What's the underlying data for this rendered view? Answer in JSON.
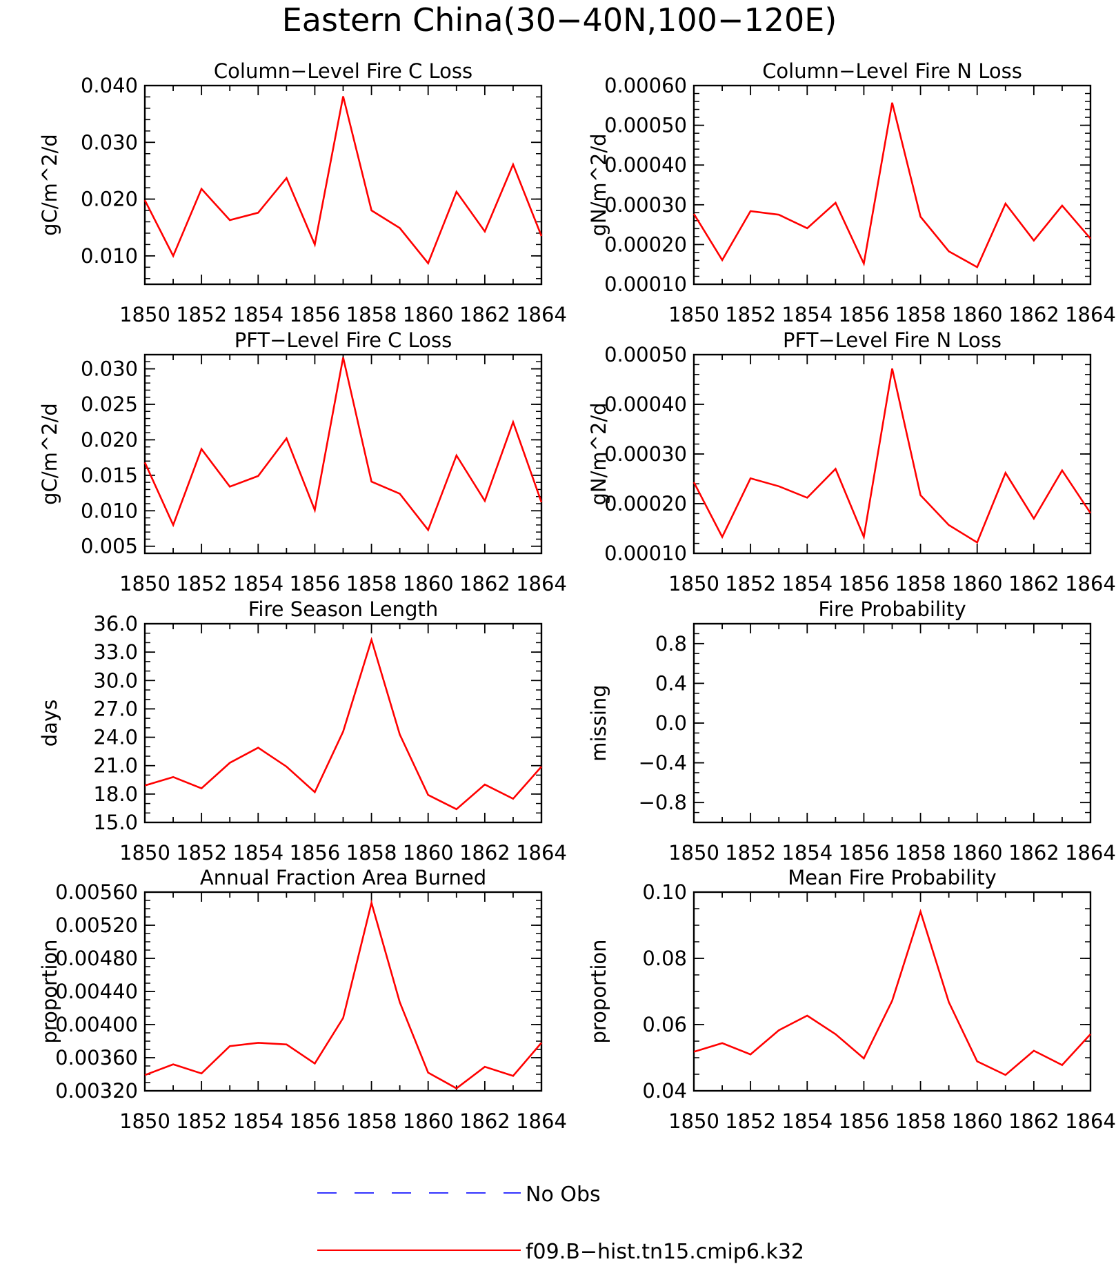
{
  "figure": {
    "title": "Eastern China(30−40N,100−120E)",
    "legend": {
      "placement": "bottom-center",
      "entries": [
        {
          "label": "No Obs",
          "color": "#3333ff",
          "style": "dashed"
        },
        {
          "label": "f09.B−hist.tn15.cmip6.k32",
          "color": "#ff0000",
          "style": "solid"
        }
      ]
    }
  },
  "chart_data": [
    {
      "type": "line",
      "title": "Column−Level Fire C Loss",
      "ylabel": "gC/m^2/d",
      "xlabel": "",
      "xlim": [
        1850,
        1864
      ],
      "ylim": [
        0.005,
        0.04
      ],
      "xticks": [
        "1850",
        "1852",
        "1854",
        "1856",
        "1858",
        "1860",
        "1862",
        "1864"
      ],
      "yticks": [
        "0.010",
        "0.020",
        "0.030",
        "0.040"
      ],
      "ytick_values": [
        0.01,
        0.02,
        0.03,
        0.04
      ],
      "minor_step": 0.002,
      "grid": false,
      "x": [
        1850,
        1851,
        1852,
        1853,
        1854,
        1855,
        1856,
        1857,
        1858,
        1859,
        1860,
        1861,
        1862,
        1863,
        1864
      ],
      "series": [
        {
          "color": "#ff0000",
          "values": [
            0.0198,
            0.01,
            0.0218,
            0.0163,
            0.0176,
            0.0237,
            0.012,
            0.0381,
            0.018,
            0.0149,
            0.0087,
            0.0213,
            0.0143,
            0.0261,
            0.0135
          ]
        }
      ]
    },
    {
      "type": "line",
      "title": "Column−Level Fire N Loss",
      "ylabel": "gN/m^2/d",
      "xlabel": "",
      "xlim": [
        1850,
        1864
      ],
      "ylim": [
        0.0001,
        0.0006
      ],
      "xticks": [
        "1850",
        "1852",
        "1854",
        "1856",
        "1858",
        "1860",
        "1862",
        "1864"
      ],
      "yticks": [
        "0.00010",
        "0.00020",
        "0.00030",
        "0.00040",
        "0.00050",
        "0.00060"
      ],
      "ytick_values": [
        0.0001,
        0.0002,
        0.0003,
        0.0004,
        0.0005,
        0.0006
      ],
      "minor_step": 2e-05,
      "grid": false,
      "x": [
        1850,
        1851,
        1852,
        1853,
        1854,
        1855,
        1856,
        1857,
        1858,
        1859,
        1860,
        1861,
        1862,
        1863,
        1864
      ],
      "series": [
        {
          "color": "#ff0000",
          "values": [
            0.000277,
            0.000161,
            0.000284,
            0.000275,
            0.000241,
            0.000305,
            0.000152,
            0.000557,
            0.00027,
            0.000183,
            0.000143,
            0.000303,
            0.00021,
            0.000298,
            0.000215
          ]
        }
      ]
    },
    {
      "type": "line",
      "title": "PFT−Level Fire C Loss",
      "ylabel": "gC/m^2/d",
      "xlabel": "",
      "xlim": [
        1850,
        1864
      ],
      "ylim": [
        0.004,
        0.032
      ],
      "xticks": [
        "1850",
        "1852",
        "1854",
        "1856",
        "1858",
        "1860",
        "1862",
        "1864"
      ],
      "yticks": [
        "0.005",
        "0.010",
        "0.015",
        "0.020",
        "0.025",
        "0.030"
      ],
      "ytick_values": [
        0.005,
        0.01,
        0.015,
        0.02,
        0.025,
        0.03
      ],
      "minor_step": 0.001,
      "grid": false,
      "x": [
        1850,
        1851,
        1852,
        1853,
        1854,
        1855,
        1856,
        1857,
        1858,
        1859,
        1860,
        1861,
        1862,
        1863,
        1864
      ],
      "series": [
        {
          "color": "#ff0000",
          "values": [
            0.0168,
            0.008,
            0.0187,
            0.0134,
            0.0149,
            0.0202,
            0.0101,
            0.0316,
            0.0141,
            0.0124,
            0.0073,
            0.0178,
            0.0114,
            0.0225,
            0.0112
          ]
        }
      ]
    },
    {
      "type": "line",
      "title": "PFT−Level Fire N Loss",
      "ylabel": "gN/m^2/d",
      "xlabel": "",
      "xlim": [
        1850,
        1864
      ],
      "ylim": [
        0.0001,
        0.0005
      ],
      "xticks": [
        "1850",
        "1852",
        "1854",
        "1856",
        "1858",
        "1860",
        "1862",
        "1864"
      ],
      "yticks": [
        "0.00010",
        "0.00020",
        "0.00030",
        "0.00040",
        "0.00050"
      ],
      "ytick_values": [
        0.0001,
        0.0002,
        0.0003,
        0.0004,
        0.0005
      ],
      "minor_step": 2e-05,
      "grid": false,
      "x": [
        1850,
        1851,
        1852,
        1853,
        1854,
        1855,
        1856,
        1857,
        1858,
        1859,
        1860,
        1861,
        1862,
        1863,
        1864
      ],
      "series": [
        {
          "color": "#ff0000",
          "values": [
            0.000243,
            0.000133,
            0.000251,
            0.000235,
            0.000212,
            0.00027,
            0.000133,
            0.000472,
            0.000217,
            0.000157,
            0.000122,
            0.000262,
            0.00017,
            0.000267,
            0.000181
          ]
        }
      ]
    },
    {
      "type": "line",
      "title": "Fire Season Length",
      "ylabel": "days",
      "xlabel": "",
      "xlim": [
        1850,
        1864
      ],
      "ylim": [
        15.0,
        36.0
      ],
      "xticks": [
        "1850",
        "1852",
        "1854",
        "1856",
        "1858",
        "1860",
        "1862",
        "1864"
      ],
      "yticks": [
        "15.0",
        "18.0",
        "21.0",
        "24.0",
        "27.0",
        "30.0",
        "33.0",
        "36.0"
      ],
      "ytick_values": [
        15,
        18,
        21,
        24,
        27,
        30,
        33,
        36
      ],
      "minor_step": 1.0,
      "grid": false,
      "x": [
        1850,
        1851,
        1852,
        1853,
        1854,
        1855,
        1856,
        1857,
        1858,
        1859,
        1860,
        1861,
        1862,
        1863,
        1864
      ],
      "series": [
        {
          "color": "#ff0000",
          "values": [
            18.9,
            19.8,
            18.6,
            21.3,
            22.9,
            20.9,
            18.2,
            24.6,
            34.3,
            24.3,
            17.9,
            16.4,
            19.0,
            17.5,
            20.9
          ]
        }
      ]
    },
    {
      "type": "line",
      "title": "Fire Probability",
      "ylabel": "missing",
      "xlabel": "",
      "xlim": [
        1850,
        1864
      ],
      "ylim": [
        -1.0,
        1.0
      ],
      "xticks": [
        "1850",
        "1852",
        "1854",
        "1856",
        "1858",
        "1860",
        "1862",
        "1864"
      ],
      "yticks": [
        "−0.8",
        "−0.4",
        "0.0",
        "0.4",
        "0.8"
      ],
      "ytick_values": [
        -0.8,
        -0.4,
        0.0,
        0.4,
        0.8
      ],
      "minor_step": 0.1,
      "grid": false,
      "x": [],
      "series": []
    },
    {
      "type": "line",
      "title": "Annual Fraction Area Burned",
      "ylabel": "proportion",
      "xlabel": "",
      "xlim": [
        1850,
        1864
      ],
      "ylim": [
        0.0032,
        0.0056
      ],
      "xticks": [
        "1850",
        "1852",
        "1854",
        "1856",
        "1858",
        "1860",
        "1862",
        "1864"
      ],
      "yticks": [
        "0.00320",
        "0.00360",
        "0.00400",
        "0.00440",
        "0.00480",
        "0.00520",
        "0.00560"
      ],
      "ytick_values": [
        0.0032,
        0.0036,
        0.004,
        0.0044,
        0.0048,
        0.0052,
        0.0056
      ],
      "minor_step": 0.0001,
      "grid": false,
      "x": [
        1850,
        1851,
        1852,
        1853,
        1854,
        1855,
        1856,
        1857,
        1858,
        1859,
        1860,
        1861,
        1862,
        1863,
        1864
      ],
      "series": [
        {
          "color": "#ff0000",
          "values": [
            0.00339,
            0.00352,
            0.00341,
            0.00374,
            0.00378,
            0.00376,
            0.00353,
            0.00408,
            0.00547,
            0.00427,
            0.00342,
            0.00323,
            0.00349,
            0.00338,
            0.00378
          ]
        }
      ]
    },
    {
      "type": "line",
      "title": "Mean Fire Probability",
      "ylabel": "proportion",
      "xlabel": "",
      "xlim": [
        1850,
        1864
      ],
      "ylim": [
        0.04,
        0.1
      ],
      "xticks": [
        "1850",
        "1852",
        "1854",
        "1856",
        "1858",
        "1860",
        "1862",
        "1864"
      ],
      "yticks": [
        "0.04",
        "0.06",
        "0.08",
        "0.10"
      ],
      "ytick_values": [
        0.04,
        0.06,
        0.08,
        0.1
      ],
      "minor_step": 0.005,
      "grid": false,
      "x": [
        1850,
        1851,
        1852,
        1853,
        1854,
        1855,
        1856,
        1857,
        1858,
        1859,
        1860,
        1861,
        1862,
        1863,
        1864
      ],
      "series": [
        {
          "color": "#ff0000",
          "values": [
            0.0518,
            0.0544,
            0.051,
            0.0583,
            0.0627,
            0.0571,
            0.0498,
            0.0672,
            0.0941,
            0.0668,
            0.0489,
            0.0448,
            0.0521,
            0.0478,
            0.0571
          ]
        }
      ]
    }
  ]
}
